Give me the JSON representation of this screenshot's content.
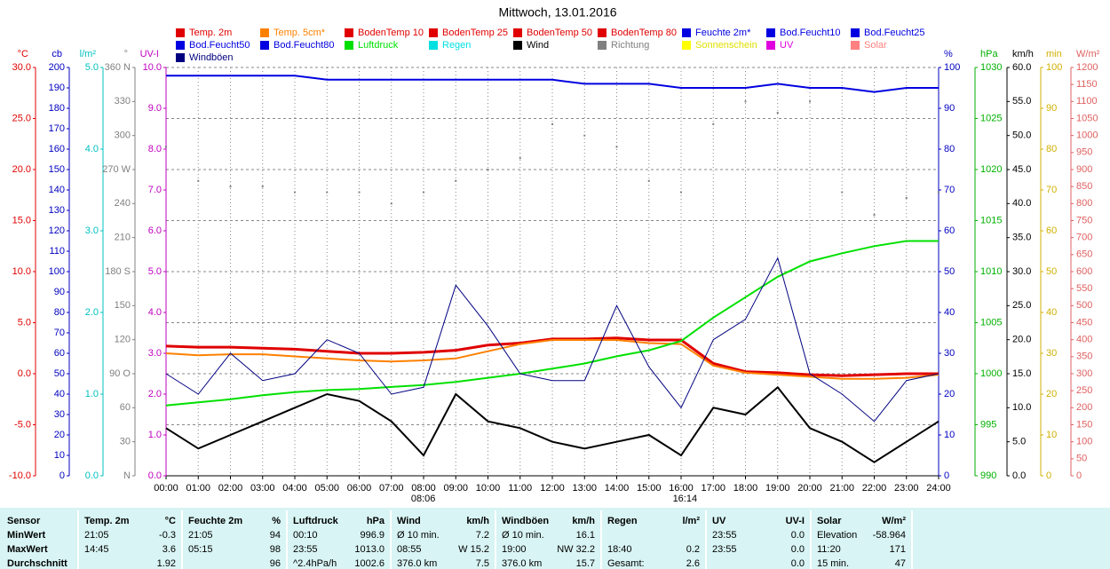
{
  "chart_data": {
    "type": "line",
    "title": "Mittwoch, 13.01.2016",
    "grid": true,
    "xlim": [
      0,
      24
    ],
    "xticks": [
      {
        "value": 0,
        "label": "00:00"
      },
      {
        "value": 1,
        "label": "01:00"
      },
      {
        "value": 2,
        "label": "02:00"
      },
      {
        "value": 3,
        "label": "03:00"
      },
      {
        "value": 4,
        "label": "04:00"
      },
      {
        "value": 5,
        "label": "05:00"
      },
      {
        "value": 6,
        "label": "06:00"
      },
      {
        "value": 7,
        "label": "07:00"
      },
      {
        "value": 8,
        "label": "08:00"
      },
      {
        "value": 9,
        "label": "09:00"
      },
      {
        "value": 10,
        "label": "10:00"
      },
      {
        "value": 11,
        "label": "11:00"
      },
      {
        "value": 12,
        "label": "12:00"
      },
      {
        "value": 13,
        "label": "13:00"
      },
      {
        "value": 14,
        "label": "14:00"
      },
      {
        "value": 15,
        "label": "15:00"
      },
      {
        "value": 16,
        "label": "16:00"
      },
      {
        "value": 17,
        "label": "17:00"
      },
      {
        "value": 18,
        "label": "18:00"
      },
      {
        "value": 19,
        "label": "19:00"
      },
      {
        "value": 20,
        "label": "20:00"
      },
      {
        "value": 21,
        "label": "21:00"
      },
      {
        "value": 22,
        "label": "22:00"
      },
      {
        "value": 23,
        "label": "23:00"
      },
      {
        "value": 24,
        "label": "24:00"
      }
    ],
    "x": [
      0,
      1,
      2,
      3,
      4,
      5,
      6,
      7,
      8,
      9,
      10,
      11,
      12,
      13,
      14,
      15,
      16,
      17,
      18,
      19,
      20,
      21,
      22,
      23,
      24
    ],
    "annotations": [
      {
        "x": 8.1,
        "text": "08:06"
      },
      {
        "x": 16.23,
        "text": "16:14"
      }
    ],
    "axes": [
      {
        "label": "°C",
        "side": "left",
        "color": "#e00000",
        "lim": [
          -10,
          30
        ],
        "ticks": [
          {
            "value": -10,
            "label": "-10.0"
          },
          {
            "value": -5,
            "label": "-5.0"
          },
          {
            "value": 0,
            "label": "0.0"
          },
          {
            "value": 5,
            "label": "5.0"
          },
          {
            "value": 10,
            "label": "10.0"
          },
          {
            "value": 15,
            "label": "15.0"
          },
          {
            "value": 20,
            "label": "20.0"
          },
          {
            "value": 25,
            "label": "25.0"
          },
          {
            "value": 30,
            "label": "30.0"
          }
        ]
      },
      {
        "label": "cb",
        "side": "left",
        "color": "#0000c0",
        "lim": [
          0,
          200
        ],
        "ticks": [
          0,
          10,
          20,
          30,
          40,
          50,
          60,
          70,
          80,
          90,
          100,
          110,
          120,
          130,
          140,
          150,
          160,
          170,
          180,
          190,
          200
        ]
      },
      {
        "label": "l/m²",
        "side": "left",
        "color": "#00c0c0",
        "lim": [
          0,
          5
        ],
        "ticks": [
          {
            "value": 0,
            "label": "0.0"
          },
          {
            "value": 1,
            "label": "1.0"
          },
          {
            "value": 2,
            "label": "2.0"
          },
          {
            "value": 3,
            "label": "3.0"
          },
          {
            "value": 4,
            "label": "4.0"
          },
          {
            "value": 5,
            "label": "5.0"
          }
        ]
      },
      {
        "label": "°",
        "side": "left",
        "color": "#808080",
        "lim": [
          0,
          360
        ],
        "ticks": [
          {
            "value": 0,
            "label": "N"
          },
          30,
          60,
          {
            "value": 90,
            "label": "90 O"
          },
          120,
          150,
          {
            "value": 180,
            "label": "180 S"
          },
          210,
          240,
          {
            "value": 270,
            "label": "270 W"
          },
          300,
          330,
          {
            "value": 360,
            "label": "360 N"
          }
        ]
      },
      {
        "label": "UV-I",
        "side": "left",
        "color": "#c000c0",
        "lim": [
          0,
          10
        ],
        "ticks": [
          {
            "value": 0,
            "label": "0.0"
          },
          {
            "value": 1,
            "label": "1.0"
          },
          {
            "value": 2,
            "label": "2.0"
          },
          {
            "value": 3,
            "label": "3.0"
          },
          {
            "value": 4,
            "label": "4.0"
          },
          {
            "value": 5,
            "label": "5.0"
          },
          {
            "value": 6,
            "label": "6.0"
          },
          {
            "value": 7,
            "label": "7.0"
          },
          {
            "value": 8,
            "label": "8.0"
          },
          {
            "value": 9,
            "label": "9.0"
          },
          {
            "value": 10,
            "label": "10.0"
          }
        ]
      },
      {
        "label": "%",
        "side": "right",
        "color": "#0000c0",
        "lim": [
          0,
          100
        ],
        "ticks": [
          0,
          10,
          20,
          30,
          40,
          50,
          60,
          70,
          80,
          90,
          100
        ]
      },
      {
        "label": "hPa",
        "side": "right",
        "color": "#00b000",
        "lim": [
          990,
          1030
        ],
        "ticks": [
          990,
          995,
          1000,
          1005,
          1010,
          1015,
          1020,
          1025,
          1030
        ]
      },
      {
        "label": "km/h",
        "side": "right",
        "color": "#000000",
        "lim": [
          0,
          60
        ],
        "ticks": [
          {
            "value": 0,
            "label": "0.0"
          },
          {
            "value": 5,
            "label": "5.0"
          },
          {
            "value": 10,
            "label": "10.0"
          },
          {
            "value": 15,
            "label": "15.0"
          },
          {
            "value": 20,
            "label": "20.0"
          },
          {
            "value": 25,
            "label": "25.0"
          },
          {
            "value": 30,
            "label": "30.0"
          },
          {
            "value": 35,
            "label": "35.0"
          },
          {
            "value": 40,
            "label": "40.0"
          },
          {
            "value": 45,
            "label": "45.0"
          },
          {
            "value": 50,
            "label": "50.0"
          },
          {
            "value": 55,
            "label": "55.0"
          },
          {
            "value": 60,
            "label": "60.0"
          }
        ]
      },
      {
        "label": "min",
        "side": "right",
        "color": "#d0b000",
        "lim": [
          0,
          100
        ],
        "ticks": [
          0,
          10,
          20,
          30,
          40,
          50,
          60,
          70,
          80,
          90,
          100
        ]
      },
      {
        "label": "W/m²",
        "side": "right",
        "color": "#e06060",
        "lim": [
          0,
          1200
        ],
        "ticks": [
          0,
          50,
          100,
          150,
          200,
          250,
          300,
          350,
          400,
          450,
          500,
          550,
          600,
          650,
          700,
          750,
          800,
          850,
          900,
          950,
          1000,
          1050,
          1100,
          1150,
          1200
        ]
      }
    ],
    "series": [
      {
        "name": "Temp. 2m",
        "color": "#e00000",
        "axis": "°C",
        "width": 3,
        "values": [
          2.7,
          2.6,
          2.6,
          2.5,
          2.4,
          2.2,
          2.0,
          2.0,
          2.1,
          2.3,
          2.8,
          3.0,
          3.4,
          3.4,
          3.5,
          3.3,
          3.3,
          1.0,
          0.2,
          0.1,
          -0.1,
          -0.2,
          -0.1,
          0.0,
          0.0
        ]
      },
      {
        "name": "Temp. 5cm*",
        "color": "#ff8000",
        "axis": "°C",
        "width": 2,
        "values": [
          2.0,
          1.8,
          1.9,
          1.9,
          1.7,
          1.5,
          1.3,
          1.2,
          1.3,
          1.5,
          2.2,
          2.9,
          3.3,
          3.3,
          3.3,
          3.0,
          2.9,
          0.8,
          0.1,
          -0.1,
          -0.3,
          -0.5,
          -0.5,
          -0.4,
          -0.1
        ]
      },
      {
        "name": "BodenTemp 10",
        "color": "#e00000"
      },
      {
        "name": "BodenTemp 25",
        "color": "#e00000"
      },
      {
        "name": "BodenTemp 50",
        "color": "#e00000"
      },
      {
        "name": "BodenTemp 80",
        "color": "#e00000"
      },
      {
        "name": "Feuchte 2m*",
        "color": "#0000e0",
        "axis": "%",
        "width": 2,
        "values": [
          98,
          98,
          98,
          98,
          98,
          97,
          97,
          97,
          97,
          97,
          97,
          97,
          97,
          96,
          96,
          96,
          95,
          95,
          95,
          96,
          95,
          95,
          94,
          95,
          95
        ]
      },
      {
        "name": "Bod.Feucht10",
        "color": "#0000e0"
      },
      {
        "name": "Bod.Feucht25",
        "color": "#0000e0"
      },
      {
        "name": "Bod.Feucht50",
        "color": "#0000e0"
      },
      {
        "name": "Bod.Feucht80",
        "color": "#0000e0"
      },
      {
        "name": "Luftdruck",
        "color": "#00e000",
        "axis": "hPa",
        "width": 2,
        "values": [
          996.9,
          997.2,
          997.5,
          997.9,
          998.2,
          998.4,
          998.5,
          998.7,
          998.9,
          999.2,
          999.6,
          1000.0,
          1000.5,
          1001.0,
          1001.7,
          1002.3,
          1003.2,
          1005.5,
          1007.5,
          1009.5,
          1011.0,
          1011.8,
          1012.5,
          1013.0,
          1013.0
        ]
      },
      {
        "name": "Regen",
        "color": "#00e0e0"
      },
      {
        "name": "Wind",
        "color": "#000000",
        "axis": "km/h",
        "width": 2,
        "values": [
          7,
          4,
          6,
          8,
          10,
          12,
          11,
          8,
          3,
          12,
          8,
          7,
          5,
          4,
          5,
          6,
          3,
          10,
          9,
          13,
          7,
          5,
          2,
          5,
          8
        ]
      },
      {
        "name": "Richtung",
        "color": "#808080",
        "axis": "°",
        "kind": "points",
        "values": [
          290,
          260,
          255,
          255,
          250,
          250,
          250,
          240,
          250,
          260,
          270,
          280,
          310,
          300,
          290,
          260,
          250,
          310,
          330,
          320,
          330,
          250,
          230,
          245,
          250
        ]
      },
      {
        "name": "Sonnenschein",
        "color": "#ffff00"
      },
      {
        "name": "UV",
        "color": "#e000e0"
      },
      {
        "name": "Solar",
        "color": "#ff8080"
      },
      {
        "name": "Windböen",
        "color": "#000080",
        "axis": "km/h",
        "width": 1,
        "values": [
          15,
          12,
          18,
          14,
          15,
          20,
          18,
          12,
          13,
          28,
          22,
          15,
          14,
          14,
          25,
          16,
          10,
          20,
          23,
          32,
          15,
          12,
          8,
          14,
          15
        ]
      }
    ]
  },
  "table": {
    "header": [
      "Sensor",
      "Temp. 2m",
      "°C",
      "Feuchte 2m",
      "%",
      "Luftdruck",
      "hPa",
      "Wind",
      "km/h",
      "Windböen",
      "km/h",
      "Regen",
      "l/m²",
      "UV",
      "UV-I",
      "Solar",
      "W/m²"
    ],
    "rows": [
      [
        "MinWert",
        "21:05",
        "-0.3",
        "21:05",
        "94",
        "00:10",
        "996.9",
        "Ø 10 min.",
        "7.2",
        "Ø 10 min.",
        "16.1",
        null,
        null,
        "23:55",
        "0.0",
        "Elevation",
        "-58.964"
      ],
      [
        "MaxWert",
        "14:45",
        "3.6",
        "05:15",
        "98",
        "23:55",
        "1013.0",
        "08:55",
        "W 15.2",
        "19:00",
        "NW 32.2",
        "18:40",
        "0.2",
        "23:55",
        "0.0",
        "11:20",
        "171"
      ],
      [
        "Durchschnitt",
        null,
        "1.92",
        null,
        "96",
        "^2.4hPa/h",
        "1002.6",
        "376.0 km",
        "7.5",
        "376.0 km",
        "15.7",
        "Gesamt:",
        "2.6",
        null,
        "0.0",
        "15 min.",
        "47"
      ]
    ]
  }
}
